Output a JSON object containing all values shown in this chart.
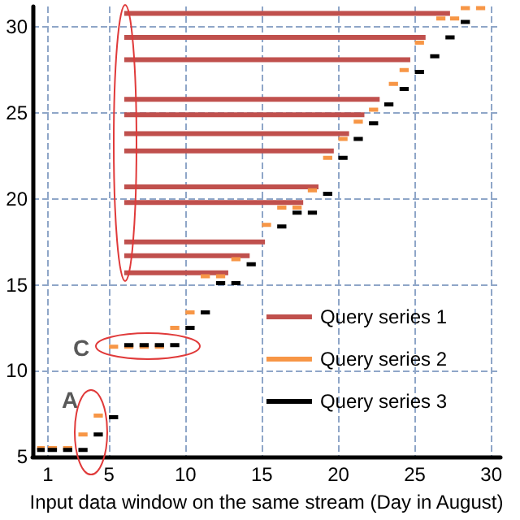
{
  "chart_data": {
    "type": "line",
    "xlabel": "Input data window on the same stream (Day in August)",
    "xlim": [
      0,
      30.6
    ],
    "xticks": [
      1,
      5,
      10,
      15,
      20,
      25,
      30
    ],
    "ylim": [
      5,
      31.2
    ],
    "yticks": [
      5,
      10,
      15,
      20,
      25,
      30
    ],
    "grid": true,
    "legend": "bottom right",
    "marker": "none",
    "line_style": "solid",
    "annotations": [
      "A",
      "C"
    ],
    "series": [
      {
        "name": "Query series 1",
        "color": "#c0504d",
        "x": [
          6,
          27.3,
          null,
          6,
          25.7,
          null,
          6,
          24.7,
          null,
          6,
          22.7,
          null,
          6,
          21.7,
          null,
          6,
          20.7,
          null,
          6,
          19.7,
          null,
          6,
          18.7,
          null,
          6,
          17.7,
          null,
          6,
          15.2,
          null,
          6,
          14.2,
          null,
          6,
          12.8
        ],
        "values": [
          30.8,
          30.8,
          null,
          29.4,
          29.4,
          null,
          28.1,
          28.1,
          null,
          25.8,
          25.8,
          null,
          24.9,
          24.9,
          null,
          23.8,
          23.8,
          null,
          22.8,
          22.8,
          null,
          20.7,
          20.7,
          null,
          19.8,
          19.8,
          null,
          17.5,
          17.5,
          null,
          16.7,
          16.7,
          null,
          15.7,
          15.7
        ]
      },
      {
        "name": "Query series 2",
        "color": "#f79646",
        "x": [
          0.3,
          0.8,
          null,
          1.0,
          1.6,
          null,
          2.0,
          2.6,
          null,
          3.0,
          3.6,
          null,
          4.0,
          4.6,
          null,
          5.0,
          5.6,
          null,
          6.0,
          6.6,
          null,
          7.0,
          7.6,
          null,
          8.0,
          8.6,
          null,
          9.0,
          9.6,
          null,
          10.0,
          10.6,
          null,
          11.0,
          11.6,
          null,
          12.0,
          12.6,
          null,
          13.0,
          13.6,
          null,
          15.0,
          15.6,
          null,
          16.0,
          16.6,
          null,
          17.0,
          17.6,
          null,
          18.0,
          18.6,
          null,
          19.0,
          19.6,
          null,
          20.0,
          20.6,
          null,
          21.0,
          21.6,
          null,
          22.0,
          22.6,
          null,
          23.3,
          23.9,
          null,
          24.0,
          24.6,
          null,
          25.0,
          25.6,
          null,
          26.4,
          27.0,
          null,
          27.3,
          27.9,
          null,
          28.0,
          28.6,
          null,
          29.0,
          29.6
        ],
        "values": [
          5.5,
          5.5,
          null,
          5.5,
          5.5,
          null,
          5.5,
          5.5,
          null,
          6.3,
          6.3,
          null,
          7.4,
          7.4,
          null,
          11.4,
          11.4,
          null,
          11.4,
          11.4,
          null,
          11.4,
          11.4,
          null,
          11.4,
          11.4,
          null,
          12.5,
          12.5,
          null,
          13.4,
          13.4,
          null,
          15.5,
          15.5,
          null,
          15.5,
          15.5,
          null,
          16.5,
          16.5,
          null,
          18.5,
          18.5,
          null,
          19.5,
          19.5,
          null,
          19.5,
          19.5,
          null,
          20.5,
          20.5,
          null,
          22.4,
          22.4,
          null,
          23.5,
          23.5,
          null,
          24.5,
          24.5,
          null,
          25.2,
          25.2,
          null,
          26.7,
          26.7,
          null,
          27.5,
          27.5,
          null,
          29.1,
          29.1,
          null,
          30.5,
          30.5,
          null,
          30.5,
          30.5,
          null,
          31.1,
          31.1,
          null,
          31.1,
          31.1
        ]
      },
      {
        "name": "Query series 3",
        "color": "#000000",
        "x": [
          0.3,
          0.8,
          null,
          1.0,
          1.6,
          null,
          2.0,
          2.6,
          null,
          3.0,
          3.6,
          null,
          4.0,
          4.6,
          null,
          5.0,
          5.6,
          null,
          6.0,
          6.6,
          null,
          7.0,
          7.6,
          null,
          8.0,
          8.6,
          null,
          9.0,
          9.6,
          null,
          10.0,
          10.6,
          null,
          11.0,
          11.6,
          null,
          12.0,
          12.6,
          null,
          13.0,
          13.6,
          null,
          14.0,
          14.6,
          null,
          16.0,
          16.6,
          null,
          17.0,
          17.6,
          null,
          18.0,
          18.6,
          null,
          19.0,
          19.6,
          null,
          20.0,
          20.6,
          null,
          21.0,
          21.6,
          null,
          22.0,
          22.6,
          null,
          23.0,
          23.6,
          null,
          24.0,
          24.6,
          null,
          25.0,
          25.6,
          null,
          26.0,
          26.6,
          null,
          27.0,
          27.6,
          null,
          28.0,
          28.6
        ],
        "values": [
          5.4,
          5.4,
          null,
          5.4,
          5.4,
          null,
          5.4,
          5.4,
          null,
          5.4,
          5.4,
          null,
          6.3,
          6.3,
          null,
          7.3,
          7.3,
          null,
          11.5,
          11.5,
          null,
          11.5,
          11.5,
          null,
          11.5,
          11.5,
          null,
          11.5,
          11.5,
          null,
          12.5,
          12.5,
          null,
          13.4,
          13.4,
          null,
          15.1,
          15.1,
          null,
          15.1,
          15.1,
          null,
          16.2,
          16.2,
          null,
          18.4,
          18.4,
          null,
          19.2,
          19.2,
          null,
          19.2,
          19.2,
          null,
          20.3,
          20.3,
          null,
          22.4,
          22.4,
          null,
          23.5,
          23.5,
          null,
          24.4,
          24.4,
          null,
          25.5,
          25.5,
          null,
          26.4,
          26.4,
          null,
          27.4,
          27.4,
          null,
          28.3,
          28.3,
          null,
          29.4,
          29.4,
          null,
          30.3,
          30.3
        ]
      }
    ]
  }
}
